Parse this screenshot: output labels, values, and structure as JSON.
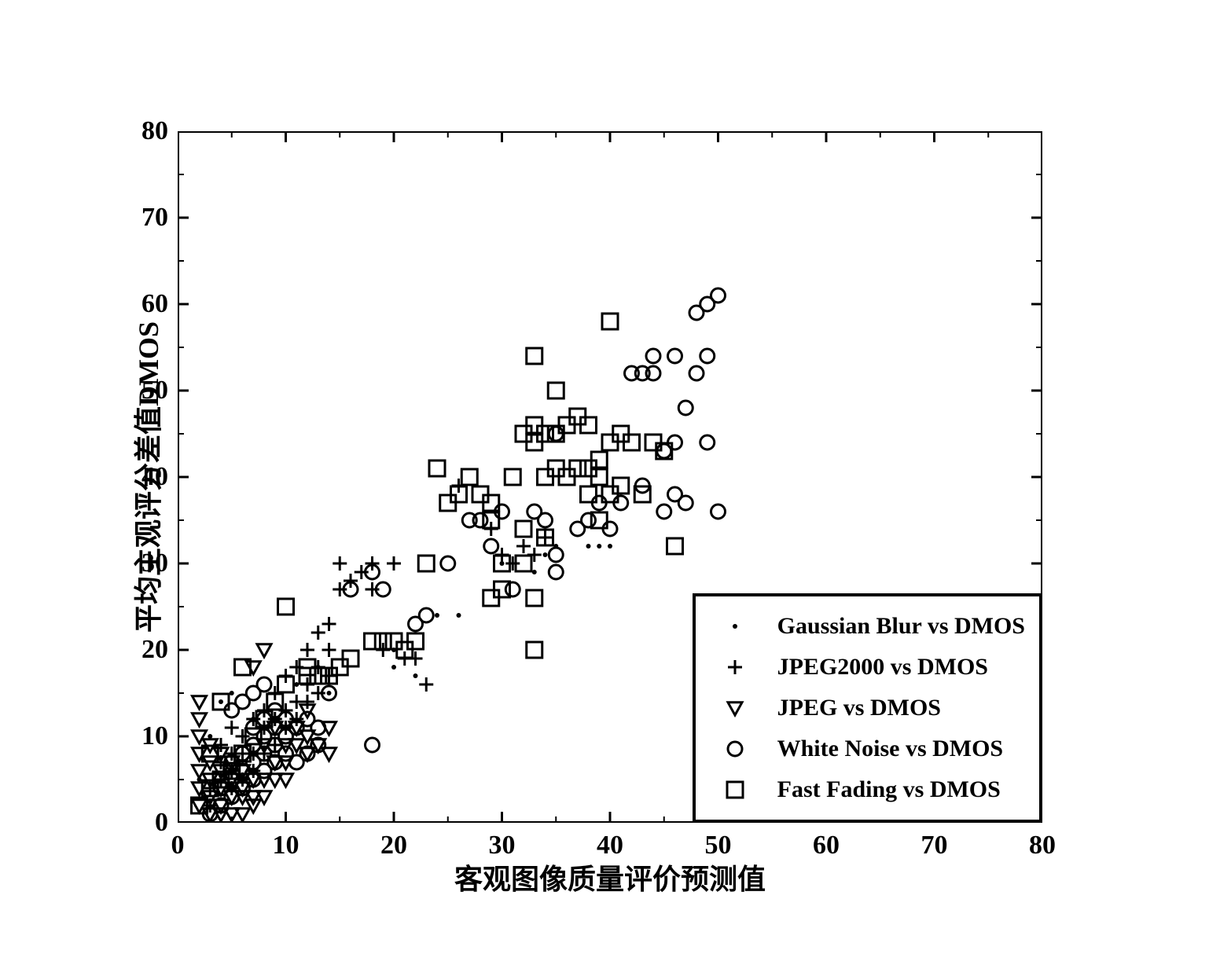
{
  "chart": {
    "type": "scatter",
    "background_color": "#ffffff",
    "axis_color": "#000000",
    "axis_linewidth": 4,
    "tick_length_major": 14,
    "minor_ticks_per_interval": 1,
    "tick_length_minor": 8,
    "xlim": [
      0,
      80
    ],
    "ylim": [
      0,
      80
    ],
    "xtick_step": 10,
    "ytick_step": 10,
    "xtick_labels": [
      "0",
      "10",
      "20",
      "30",
      "40",
      "50",
      "60",
      "70",
      "80"
    ],
    "ytick_labels": [
      "0",
      "10",
      "20",
      "30",
      "40",
      "50",
      "60",
      "70",
      "80"
    ],
    "xlabel": "客观图像质量评价预测值",
    "ylabel": "平均主观评分差值DMOS",
    "label_fontsize": 36,
    "tick_fontsize": 34,
    "tick_fontweight": "bold",
    "marker_color": "#000000",
    "marker_linewidth": 3,
    "marker_sizes": {
      "dot": 3,
      "plus": 18,
      "tri": 18,
      "circ": 18,
      "square": 20
    },
    "legend": {
      "border_width": 4,
      "fontsize": 30,
      "fontweight": "bold",
      "pos": "lower-right",
      "items": [
        {
          "marker": "dot",
          "label": "Gaussian Blur vs DMOS"
        },
        {
          "marker": "plus",
          "label": "JPEG2000 vs DMOS"
        },
        {
          "marker": "tri",
          "label": "JPEG vs DMOS"
        },
        {
          "marker": "circ",
          "label": "White Noise vs DMOS"
        },
        {
          "marker": "square",
          "label": "Fast Fading vs DMOS"
        }
      ]
    },
    "series": {
      "dot": [
        [
          4,
          14
        ],
        [
          3,
          10
        ],
        [
          2,
          5
        ],
        [
          5,
          15
        ],
        [
          7,
          12
        ],
        [
          9,
          12
        ],
        [
          11,
          16
        ],
        [
          13,
          18
        ],
        [
          14,
          15
        ],
        [
          20,
          18
        ],
        [
          22,
          17
        ],
        [
          24,
          24
        ],
        [
          34,
          31
        ],
        [
          35,
          32
        ],
        [
          38,
          32
        ],
        [
          39,
          32
        ],
        [
          40,
          32
        ],
        [
          20,
          20
        ],
        [
          26,
          24
        ],
        [
          30,
          30
        ],
        [
          33,
          29
        ]
      ],
      "plus": [
        [
          3,
          2
        ],
        [
          3,
          4
        ],
        [
          4,
          5
        ],
        [
          4,
          7
        ],
        [
          4,
          9
        ],
        [
          5,
          4
        ],
        [
          5,
          6
        ],
        [
          5,
          8
        ],
        [
          5,
          11
        ],
        [
          6,
          5
        ],
        [
          6,
          8
        ],
        [
          6,
          10
        ],
        [
          7,
          6
        ],
        [
          7,
          8
        ],
        [
          7,
          12
        ],
        [
          8,
          8
        ],
        [
          8,
          11
        ],
        [
          8,
          13
        ],
        [
          9,
          9
        ],
        [
          9,
          12
        ],
        [
          9,
          15
        ],
        [
          10,
          11
        ],
        [
          10,
          13
        ],
        [
          10,
          17
        ],
        [
          11,
          12
        ],
        [
          11,
          14
        ],
        [
          11,
          18
        ],
        [
          12,
          14
        ],
        [
          12,
          16
        ],
        [
          12,
          20
        ],
        [
          13,
          15
        ],
        [
          13,
          18
        ],
        [
          13,
          22
        ],
        [
          14,
          17
        ],
        [
          14,
          20
        ],
        [
          14,
          23
        ],
        [
          15,
          27
        ],
        [
          15,
          30
        ],
        [
          16,
          28
        ],
        [
          17,
          29
        ],
        [
          18,
          27
        ],
        [
          18,
          30
        ],
        [
          19,
          20
        ],
        [
          20,
          30
        ],
        [
          21,
          19
        ],
        [
          22,
          19
        ],
        [
          23,
          16
        ],
        [
          26,
          39
        ],
        [
          29,
          34
        ],
        [
          30,
          31
        ],
        [
          31,
          30
        ],
        [
          32,
          32
        ],
        [
          33,
          31
        ],
        [
          34,
          33
        ]
      ],
      "tri": [
        [
          2,
          14
        ],
        [
          2,
          12
        ],
        [
          2,
          10
        ],
        [
          2,
          8
        ],
        [
          2,
          6
        ],
        [
          2,
          4
        ],
        [
          2,
          2
        ],
        [
          3,
          9
        ],
        [
          3,
          7
        ],
        [
          3,
          5
        ],
        [
          3,
          3
        ],
        [
          3,
          1
        ],
        [
          4,
          8
        ],
        [
          4,
          6
        ],
        [
          4,
          4
        ],
        [
          4,
          2
        ],
        [
          4,
          1
        ],
        [
          5,
          7
        ],
        [
          5,
          5
        ],
        [
          5,
          3
        ],
        [
          5,
          1
        ],
        [
          6,
          6
        ],
        [
          6,
          4
        ],
        [
          6,
          3
        ],
        [
          6,
          1
        ],
        [
          7,
          18
        ],
        [
          7,
          5
        ],
        [
          7,
          3
        ],
        [
          7,
          2
        ],
        [
          8,
          20
        ],
        [
          8,
          9
        ],
        [
          8,
          5
        ],
        [
          8,
          3
        ],
        [
          9,
          11
        ],
        [
          9,
          7
        ],
        [
          9,
          5
        ],
        [
          10,
          9
        ],
        [
          10,
          7
        ],
        [
          10,
          5
        ],
        [
          11,
          11
        ],
        [
          11,
          9
        ],
        [
          12,
          13
        ],
        [
          12,
          10
        ],
        [
          12,
          8
        ],
        [
          13,
          9
        ],
        [
          14,
          11
        ],
        [
          14,
          8
        ]
      ],
      "circ": [
        [
          3,
          1
        ],
        [
          4,
          2
        ],
        [
          4,
          4
        ],
        [
          5,
          3
        ],
        [
          5,
          5
        ],
        [
          5,
          7
        ],
        [
          5,
          13
        ],
        [
          6,
          4
        ],
        [
          6,
          6
        ],
        [
          6,
          8
        ],
        [
          6,
          14
        ],
        [
          7,
          5
        ],
        [
          7,
          7
        ],
        [
          7,
          9
        ],
        [
          7,
          11
        ],
        [
          7,
          15
        ],
        [
          8,
          6
        ],
        [
          8,
          8
        ],
        [
          8,
          10
        ],
        [
          8,
          12
        ],
        [
          8,
          16
        ],
        [
          9,
          7
        ],
        [
          9,
          9
        ],
        [
          9,
          11
        ],
        [
          9,
          13
        ],
        [
          10,
          8
        ],
        [
          10,
          10
        ],
        [
          10,
          12
        ],
        [
          11,
          7
        ],
        [
          11,
          11
        ],
        [
          12,
          8
        ],
        [
          12,
          12
        ],
        [
          13,
          9
        ],
        [
          13,
          11
        ],
        [
          14,
          15
        ],
        [
          16,
          27
        ],
        [
          18,
          29
        ],
        [
          18,
          9
        ],
        [
          19,
          27
        ],
        [
          22,
          23
        ],
        [
          23,
          24
        ],
        [
          25,
          30
        ],
        [
          27,
          35
        ],
        [
          28,
          35
        ],
        [
          29,
          32
        ],
        [
          30,
          36
        ],
        [
          31,
          27
        ],
        [
          33,
          36
        ],
        [
          34,
          35
        ],
        [
          35,
          31
        ],
        [
          35,
          29
        ],
        [
          35,
          45
        ],
        [
          37,
          34
        ],
        [
          38,
          35
        ],
        [
          39,
          37
        ],
        [
          40,
          34
        ],
        [
          41,
          37
        ],
        [
          42,
          52
        ],
        [
          43,
          39
        ],
        [
          43,
          52
        ],
        [
          44,
          52
        ],
        [
          44,
          54
        ],
        [
          45,
          43
        ],
        [
          45,
          36
        ],
        [
          46,
          38
        ],
        [
          46,
          54
        ],
        [
          46,
          44
        ],
        [
          47,
          48
        ],
        [
          47,
          37
        ],
        [
          48,
          52
        ],
        [
          48,
          59
        ],
        [
          49,
          60
        ],
        [
          49,
          54
        ],
        [
          49,
          44
        ],
        [
          50,
          61
        ],
        [
          50,
          36
        ]
      ],
      "square": [
        [
          2,
          2
        ],
        [
          3,
          4
        ],
        [
          3,
          8
        ],
        [
          4,
          5
        ],
        [
          4,
          14
        ],
        [
          5,
          6
        ],
        [
          6,
          8
        ],
        [
          6,
          18
        ],
        [
          7,
          10
        ],
        [
          8,
          12
        ],
        [
          9,
          14
        ],
        [
          10,
          16
        ],
        [
          10,
          25
        ],
        [
          12,
          17
        ],
        [
          12,
          18
        ],
        [
          13,
          17
        ],
        [
          14,
          17
        ],
        [
          15,
          18
        ],
        [
          16,
          19
        ],
        [
          18,
          21
        ],
        [
          19,
          21
        ],
        [
          20,
          21
        ],
        [
          21,
          20
        ],
        [
          22,
          21
        ],
        [
          23,
          30
        ],
        [
          24,
          41
        ],
        [
          25,
          37
        ],
        [
          26,
          38
        ],
        [
          27,
          40
        ],
        [
          28,
          38
        ],
        [
          29,
          37
        ],
        [
          29,
          35
        ],
        [
          29,
          26
        ],
        [
          30,
          30
        ],
        [
          30,
          27
        ],
        [
          31,
          40
        ],
        [
          32,
          30
        ],
        [
          32,
          34
        ],
        [
          32,
          45
        ],
        [
          33,
          20
        ],
        [
          33,
          44
        ],
        [
          33,
          54
        ],
        [
          33,
          46
        ],
        [
          33,
          26
        ],
        [
          34,
          33
        ],
        [
          34,
          40
        ],
        [
          34,
          45
        ],
        [
          35,
          41
        ],
        [
          35,
          45
        ],
        [
          35,
          50
        ],
        [
          36,
          40
        ],
        [
          36,
          46
        ],
        [
          37,
          41
        ],
        [
          37,
          47
        ],
        [
          38,
          38
        ],
        [
          38,
          41
        ],
        [
          38,
          46
        ],
        [
          39,
          35
        ],
        [
          39,
          40
        ],
        [
          39,
          42
        ],
        [
          40,
          38
        ],
        [
          40,
          44
        ],
        [
          40,
          58
        ],
        [
          41,
          39
        ],
        [
          41,
          45
        ],
        [
          42,
          44
        ],
        [
          43,
          38
        ],
        [
          44,
          44
        ],
        [
          45,
          43
        ],
        [
          46,
          32
        ]
      ]
    }
  }
}
